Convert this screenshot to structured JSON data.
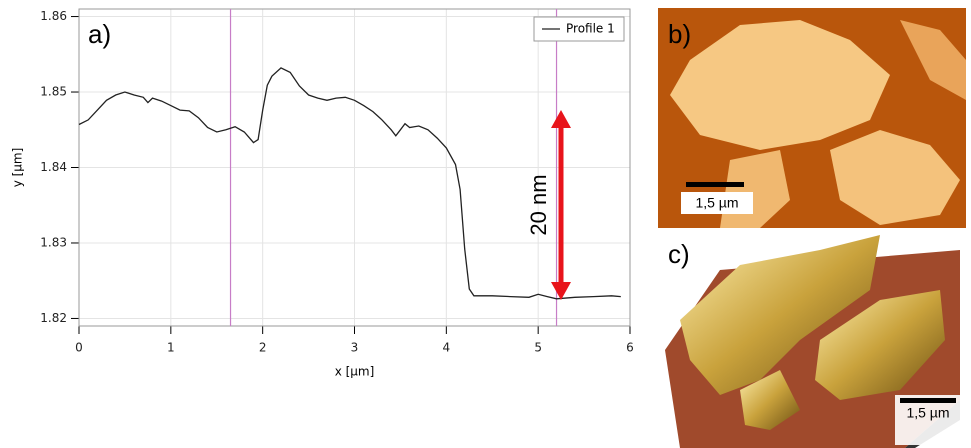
{
  "chart_data": {
    "type": "line",
    "panel_label": "a)",
    "xlabel": "x [µm]",
    "ylabel": "y [µm]",
    "x": [
      0,
      0.1,
      0.2,
      0.3,
      0.4,
      0.5,
      0.6,
      0.7,
      0.75,
      0.8,
      0.9,
      1.0,
      1.1,
      1.2,
      1.3,
      1.4,
      1.5,
      1.6,
      1.7,
      1.8,
      1.9,
      1.95,
      2.0,
      2.05,
      2.1,
      2.2,
      2.3,
      2.4,
      2.5,
      2.6,
      2.7,
      2.8,
      2.9,
      3.0,
      3.1,
      3.2,
      3.3,
      3.4,
      3.45,
      3.5,
      3.55,
      3.6,
      3.7,
      3.8,
      3.9,
      4.0,
      4.1,
      4.15,
      4.2,
      4.25,
      4.3,
      4.5,
      4.7,
      4.9,
      5.0,
      5.1,
      5.2,
      5.4,
      5.6,
      5.8,
      5.9
    ],
    "series": [
      {
        "name": "Profile 1",
        "color": "#222222",
        "values": [
          1.8457,
          1.8463,
          1.8476,
          1.8489,
          1.8496,
          1.85,
          1.8496,
          1.8493,
          1.8486,
          1.8492,
          1.8488,
          1.8482,
          1.8476,
          1.8475,
          1.8466,
          1.8453,
          1.8447,
          1.845,
          1.8454,
          1.8447,
          1.8433,
          1.8437,
          1.8476,
          1.8509,
          1.8521,
          1.8532,
          1.8526,
          1.8508,
          1.8496,
          1.8492,
          1.8489,
          1.8492,
          1.8493,
          1.8489,
          1.8482,
          1.8474,
          1.8463,
          1.845,
          1.8442,
          1.845,
          1.8458,
          1.8453,
          1.8455,
          1.845,
          1.8439,
          1.8426,
          1.8404,
          1.8371,
          1.8292,
          1.8239,
          1.823,
          1.823,
          1.8229,
          1.8228,
          1.8232,
          1.8229,
          1.8226,
          1.8228,
          1.8229,
          1.823,
          1.8229
        ]
      }
    ],
    "xlim": [
      0,
      6
    ],
    "ylim": [
      1.819,
      1.861
    ],
    "xticks": [
      0,
      1,
      2,
      3,
      4,
      5,
      6
    ],
    "yticks": [
      1.82,
      1.83,
      1.84,
      1.85,
      1.86
    ],
    "grid": true,
    "legend": "upper right",
    "cursors_x": [
      1.65,
      5.2
    ],
    "cursor_color": "#c77dc7",
    "annotation": "20 nm",
    "annotation_color": "#e8141b"
  },
  "images": [
    {
      "label": "b)",
      "scale_bar": "1,5 µm"
    },
    {
      "label": "c)",
      "scale_bar": "1,5 µm"
    }
  ]
}
